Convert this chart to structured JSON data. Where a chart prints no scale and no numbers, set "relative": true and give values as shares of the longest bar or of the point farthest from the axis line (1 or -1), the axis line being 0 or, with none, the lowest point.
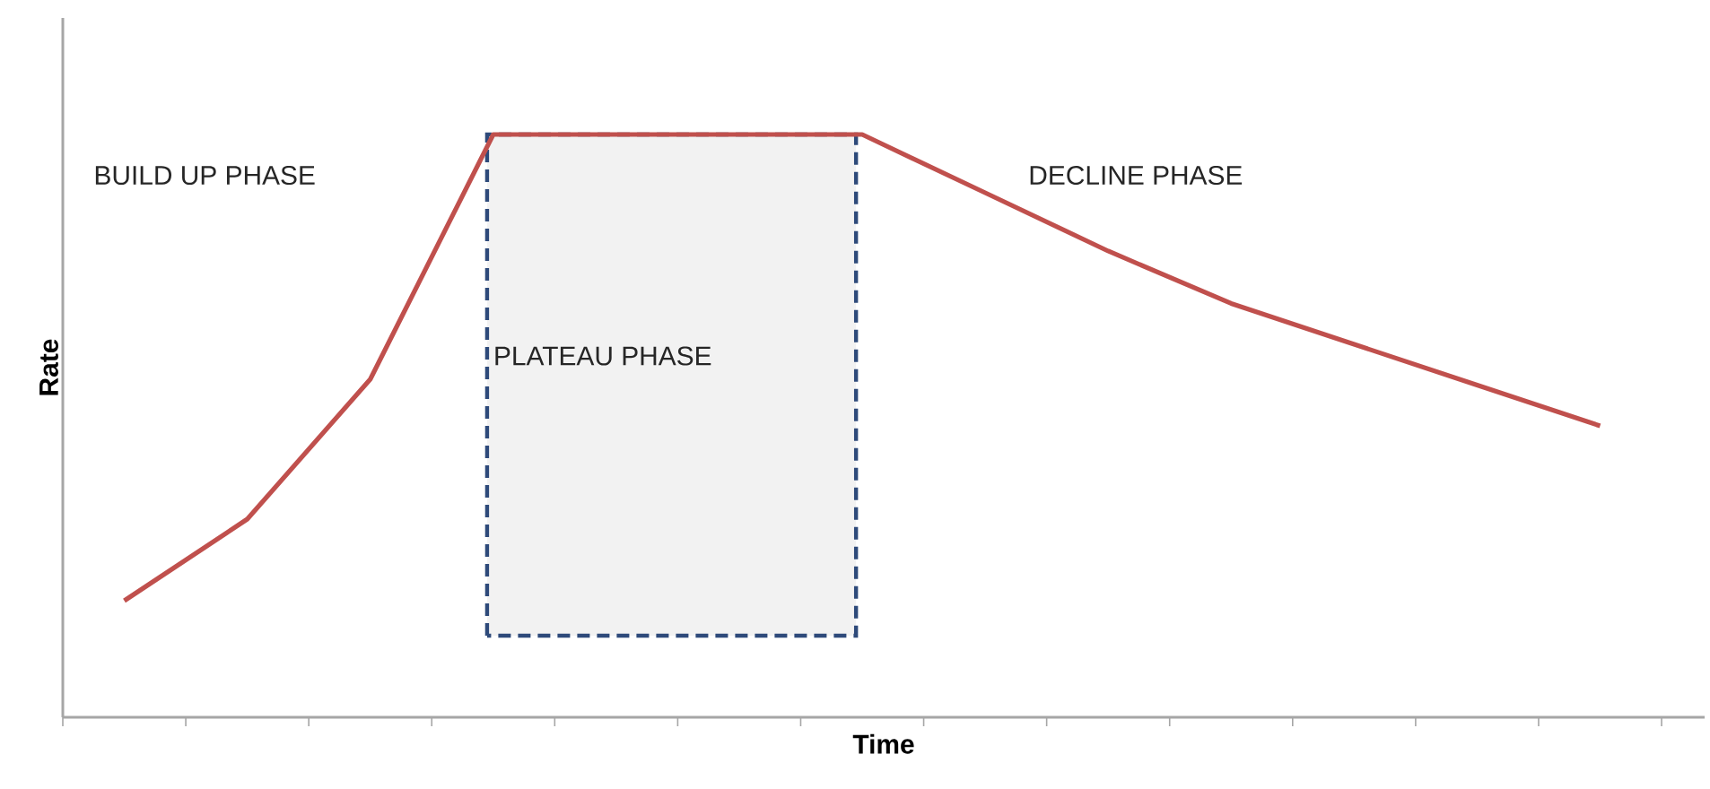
{
  "chart_data": {
    "type": "line",
    "relative": true,
    "xlabel": "Time",
    "ylabel": "Rate",
    "categories": [
      null,
      null,
      null,
      null,
      null,
      null,
      null,
      null,
      null,
      null,
      null,
      null,
      null
    ],
    "series": [
      {
        "color": "#c0504d",
        "values": [
          0.2,
          0.34,
          0.58,
          1,
          1,
          1,
          1,
          0.9,
          0.8,
          0.71,
          0.64,
          0.57,
          0.5
        ]
      }
    ],
    "annotations": [
      "BUILD UP PHASE",
      "PLATEAU PHASE",
      "DECLINE PHASE"
    ]
  }
}
